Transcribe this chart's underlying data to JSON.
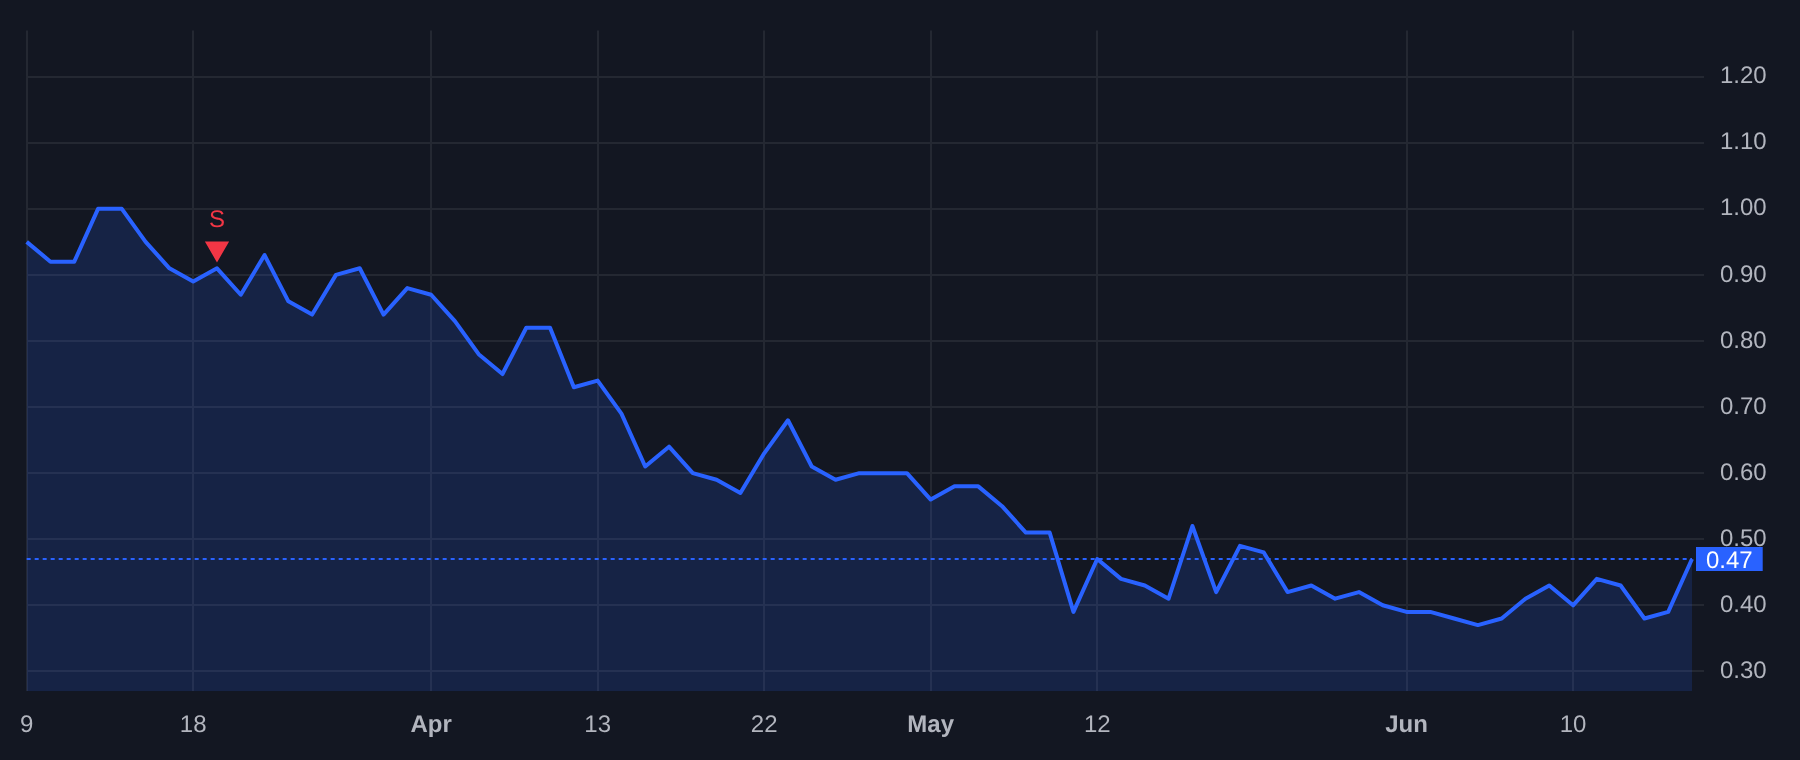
{
  "chart_data": {
    "type": "area",
    "categories": [
      "9",
      null,
      null,
      null,
      null,
      null,
      null,
      "18",
      null,
      null,
      null,
      null,
      null,
      null,
      null,
      null,
      null,
      "Apr",
      null,
      null,
      null,
      null,
      null,
      null,
      "13",
      null,
      null,
      null,
      null,
      null,
      null,
      "22",
      null,
      null,
      null,
      null,
      null,
      null,
      "May",
      null,
      null,
      null,
      null,
      null,
      null,
      "12",
      null,
      null,
      null,
      null,
      null,
      null,
      null,
      null,
      null,
      null,
      null,
      null,
      "Jun",
      null,
      null,
      null,
      null,
      null,
      null,
      "10",
      null,
      null,
      null,
      null,
      null
    ],
    "series": [
      {
        "color": "#2962ff",
        "values": [
          0.95,
          0.92,
          0.92,
          1.0,
          1.0,
          0.95,
          0.91,
          0.89,
          0.91,
          0.87,
          0.93,
          0.86,
          0.84,
          0.9,
          0.91,
          0.84,
          0.88,
          0.87,
          0.83,
          0.78,
          0.75,
          0.82,
          0.82,
          0.73,
          0.74,
          0.69,
          0.61,
          0.64,
          0.6,
          0.59,
          0.57,
          0.63,
          0.68,
          0.61,
          0.59,
          0.6,
          0.6,
          0.6,
          0.56,
          0.58,
          0.58,
          0.55,
          0.51,
          0.51,
          0.39,
          0.47,
          0.44,
          0.43,
          0.41,
          0.52,
          0.42,
          0.49,
          0.48,
          0.42,
          0.43,
          0.41,
          0.42,
          0.4,
          0.39,
          0.39,
          0.38,
          0.37,
          0.38,
          0.41,
          0.43,
          0.4,
          0.44,
          0.43,
          0.38,
          0.39,
          0.47
        ]
      },
      {
        "type": "scatter",
        "color": "#f23645",
        "marker": "triangle",
        "values": [
          null,
          null,
          null,
          null,
          null,
          null,
          null,
          null,
          0.94,
          null,
          null,
          null,
          null,
          null,
          null,
          null,
          null,
          null,
          null,
          null,
          null,
          null,
          null,
          null,
          null,
          null,
          null,
          null,
          null,
          null,
          null,
          null,
          null,
          null,
          null,
          null,
          null,
          null,
          null,
          null,
          null,
          null,
          null,
          null,
          null,
          null,
          null,
          null,
          null,
          null,
          null,
          null,
          null,
          null,
          null,
          null,
          null,
          null,
          null,
          null,
          null,
          null,
          null,
          null,
          null,
          null,
          null,
          null,
          null,
          null,
          null
        ]
      }
    ],
    "ylim": [
      0.27,
      1.27
    ],
    "yticks": [
      {
        "value": 0.3,
        "label": "0.30"
      },
      {
        "value": 0.4,
        "label": "0.40"
      },
      {
        "value": 0.5,
        "label": "0.50"
      },
      {
        "value": 0.6,
        "label": "0.60"
      },
      {
        "value": 0.7,
        "label": "0.70"
      },
      {
        "value": 0.8,
        "label": "0.80"
      },
      {
        "value": 0.9,
        "label": "0.90"
      },
      {
        "value": 1.0,
        "label": "1.00"
      },
      {
        "value": 1.1,
        "label": "1.10"
      },
      {
        "value": 1.2,
        "label": "1.20"
      }
    ],
    "ref_lines": [
      {
        "axis": "y",
        "value": 0.47,
        "label": "0.47",
        "color": "#2962ff",
        "line_style": "dotted"
      }
    ],
    "annotations": [
      "S"
    ],
    "grid": true,
    "legend": false
  }
}
